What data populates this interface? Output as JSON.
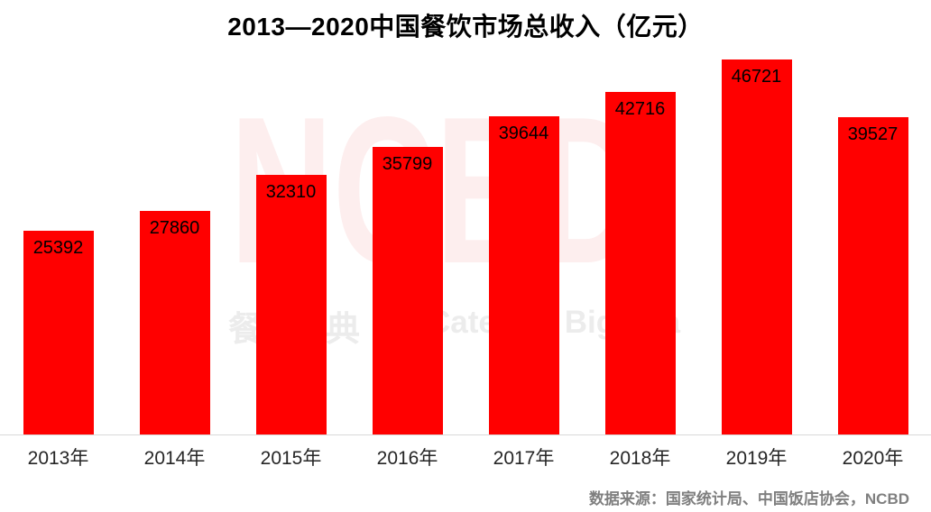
{
  "title": "2013—2020中国餐饮市场总收入（亿元）",
  "source_note": "数据来源：国家统计局、中国饭店协会，NCBD",
  "watermark": {
    "big_text": "NCBD",
    "sub_cn": "餐宝典",
    "sub_en": "Catering Bigdata"
  },
  "colors": {
    "bar": "#ff0000",
    "title": "#000000",
    "value_label": "#000000",
    "x_label": "#262626",
    "axis_line": "#d9d9d9",
    "source": "#7f7f7f",
    "watermark_big": "#fdeeee",
    "watermark_sub": "#ececec"
  },
  "chart_data": {
    "type": "bar",
    "title": "2013—2020中国餐饮市场总收入（亿元）",
    "categories": [
      "2013年",
      "2014年",
      "2015年",
      "2016年",
      "2017年",
      "2018年",
      "2019年",
      "2020年"
    ],
    "values": [
      25392,
      27860,
      32310,
      35799,
      39644,
      42716,
      46721,
      39527
    ],
    "xlabel": "",
    "ylabel": "",
    "unit": "亿元",
    "ylim": [
      0,
      46721
    ],
    "grid": false,
    "legend": false,
    "y_axis_visible": false,
    "data_label_position": "inside-top"
  }
}
